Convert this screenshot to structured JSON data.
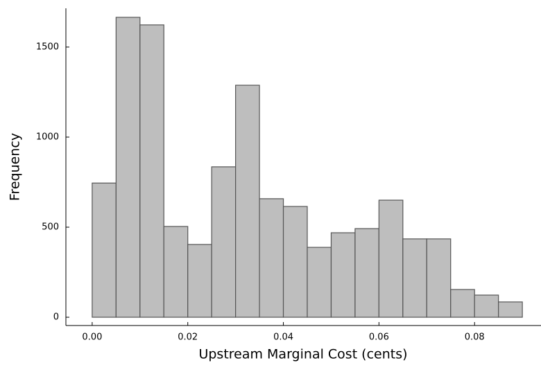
{
  "chart_data": {
    "type": "histogram",
    "xlabel": "Upstream Marginal Cost (cents)",
    "ylabel": "Frequency",
    "bins": [
      0,
      0.005,
      0.01,
      0.015,
      0.02,
      0.025,
      0.03,
      0.035,
      0.04,
      0.045,
      0.05,
      0.055,
      0.06,
      0.065,
      0.07,
      0.075,
      0.08,
      0.085,
      0.09
    ],
    "values": [
      745,
      1665,
      1623,
      504,
      404,
      835,
      1288,
      658,
      615,
      388,
      469,
      492,
      650,
      435,
      435,
      154,
      123,
      85
    ],
    "color": "#bebebe",
    "xlim": [
      -0.0055,
      0.0939
    ],
    "ylim": [
      -46,
      1715
    ],
    "xticks": [
      {
        "value": 0,
        "label": "0.00"
      },
      {
        "value": 0.02,
        "label": "0.02"
      },
      {
        "value": 0.04,
        "label": "0.04"
      },
      {
        "value": 0.06,
        "label": "0.06"
      },
      {
        "value": 0.08,
        "label": "0.08"
      }
    ],
    "yticks": [
      0,
      500,
      1000,
      1500
    ],
    "grid": false
  }
}
